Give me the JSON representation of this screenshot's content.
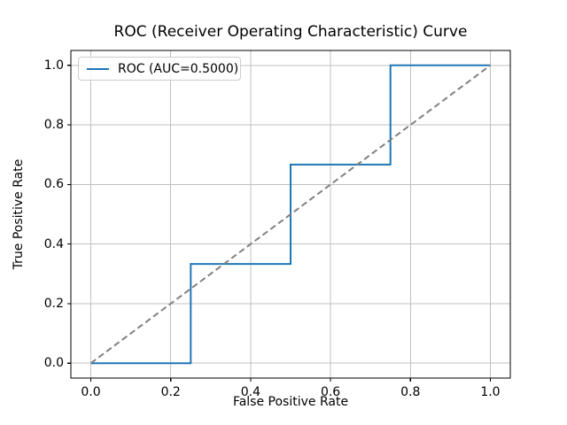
{
  "chart_data": {
    "type": "line",
    "title": "ROC (Receiver Operating Characteristic) Curve",
    "xlabel": "False Positive Rate",
    "ylabel": "True Positive Rate",
    "xlim": [
      -0.05,
      1.05
    ],
    "ylim": [
      -0.05,
      1.05
    ],
    "xticks": [
      0.0,
      0.2,
      0.4,
      0.6,
      0.8,
      1.0
    ],
    "yticks": [
      0.0,
      0.2,
      0.4,
      0.6,
      0.8,
      1.0
    ],
    "grid": true,
    "auc": 0.5,
    "legend_position": "upper left",
    "series": [
      {
        "id": "roc-curve",
        "label": "ROC (AUC=0.5000)",
        "color": "#1f77b4",
        "style": "solid",
        "x": [
          0.0,
          0.25,
          0.25,
          0.5,
          0.5,
          0.75,
          0.75,
          1.0
        ],
        "y": [
          0.0,
          0.0,
          0.3333,
          0.3333,
          0.6667,
          0.6667,
          1.0,
          1.0
        ]
      },
      {
        "id": "chance-diagonal",
        "label": "",
        "color": "#808080",
        "style": "dashed",
        "x": [
          0.0,
          1.0
        ],
        "y": [
          0.0,
          1.0
        ]
      }
    ],
    "colors": {
      "grid": "#c0c0c0",
      "frame": "#000000",
      "background": "#ffffff"
    }
  }
}
